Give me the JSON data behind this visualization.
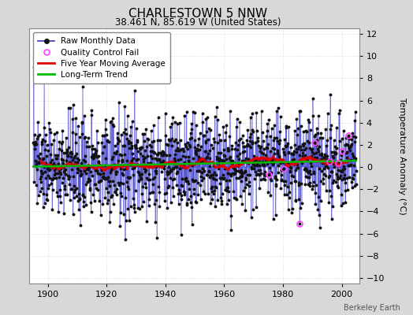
{
  "title": "CHARLESTOWN 5 NNW",
  "subtitle": "38.461 N, 85.619 W (United States)",
  "ylabel": "Temperature Anomaly (°C)",
  "watermark": "Berkeley Earth",
  "year_start": 1895,
  "year_end": 2004,
  "ylim": [
    -10.5,
    12.5
  ],
  "yticks": [
    -10,
    -8,
    -6,
    -4,
    -2,
    0,
    2,
    4,
    6,
    8,
    10,
    12
  ],
  "xticks": [
    1900,
    1920,
    1940,
    1960,
    1980,
    2000
  ],
  "fig_bg_color": "#d8d8d8",
  "plot_bg_color": "#ffffff",
  "raw_line_color": "#3333cc",
  "raw_marker_color": "#111111",
  "qc_fail_color": "#ff44ff",
  "moving_avg_color": "#dd0000",
  "trend_color": "#00bb00",
  "title_fontsize": 11,
  "subtitle_fontsize": 8.5,
  "legend_fontsize": 7.5,
  "axis_fontsize": 8,
  "ylabel_fontsize": 8
}
